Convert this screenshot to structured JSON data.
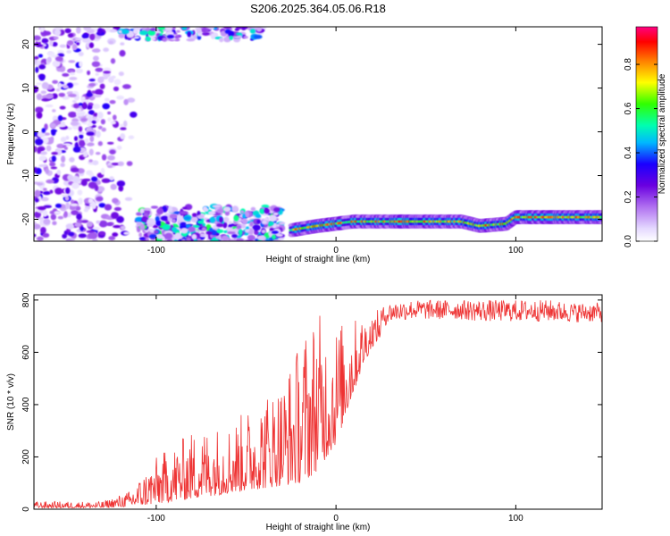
{
  "figure": {
    "title": "S206.2025.364.05.06.R18"
  },
  "colors": {
    "snr_line": "#ee3333",
    "colormap": [
      "#ffffff",
      "#e4d8ff",
      "#b070f0",
      "#6a00e0",
      "#1a00ff",
      "#00b8ff",
      "#00ffb0",
      "#30ff00",
      "#ffff00",
      "#ff8000",
      "#ff0000",
      "#ff0080"
    ]
  },
  "chart_data": [
    {
      "type": "heatmap",
      "title": "S206.2025.364.05.06.R18",
      "xlabel": "Height of straight line (km)",
      "ylabel": "Frequency (Hz)",
      "xlim": [
        -168,
        148
      ],
      "ylim": [
        -25,
        24
      ],
      "xticks": [
        -100,
        0,
        100
      ],
      "xtick_labels": [
        "-100",
        "0",
        "100"
      ],
      "yticks": [
        -20,
        -10,
        0,
        10,
        20
      ],
      "ytick_labels": [
        "-20",
        "-10",
        "0",
        "10",
        "20"
      ],
      "colorbar": {
        "label": "Normalized spectral amplitude",
        "range": [
          0.0,
          0.97
        ],
        "ticks": [
          0.0,
          0.2,
          0.4,
          0.6,
          0.8
        ],
        "tick_labels": [
          "0.0",
          "0.2",
          "0.4",
          "0.6",
          "0.8"
        ],
        "colormap": "rainbow"
      },
      "features": [
        {
          "description_kind": "ridge",
          "x": [
            -25,
            -10,
            0,
            10,
            30,
            50,
            70,
            80,
            95,
            100,
            120,
            148
          ],
          "y": [
            -22.5,
            -21.5,
            -21,
            -20.5,
            -20.5,
            -20.5,
            -20.5,
            -21.5,
            -21,
            -19.5,
            -19.5,
            -19.5
          ],
          "amplitude": 0.9
        },
        {
          "description_kind": "noise_cloud",
          "x_range": [
            -168,
            -110
          ],
          "y_range": [
            -25,
            24
          ],
          "amplitude": 0.35
        },
        {
          "description_kind": "noise_band_low",
          "x_range": [
            -110,
            -30
          ],
          "y_range": [
            -25,
            -17
          ],
          "amplitude": 0.45
        },
        {
          "description_kind": "noise_band_high",
          "x_range": [
            -120,
            -40
          ],
          "y_range": [
            21,
            24
          ],
          "amplitude": 0.4
        }
      ]
    },
    {
      "type": "line",
      "xlabel": "Height of straight line (km)",
      "ylabel": "SNR (10 * v/v)",
      "xlim": [
        -168,
        148
      ],
      "ylim": [
        0,
        820
      ],
      "xticks": [
        -100,
        0,
        100
      ],
      "xtick_labels": [
        "-100",
        "0",
        "100"
      ],
      "yticks": [
        0,
        200,
        400,
        600,
        800
      ],
      "ytick_labels": [
        "0",
        "200",
        "400",
        "600",
        "800"
      ],
      "series": [
        {
          "x": [
            -168,
            -150,
            -130,
            -115,
            -100,
            -90,
            -80,
            -70,
            -60,
            -50,
            -40,
            -30,
            -20,
            -15,
            -10,
            -5,
            0,
            5,
            10,
            15,
            20,
            25,
            30,
            40,
            50,
            60,
            70,
            80,
            90,
            100,
            110,
            120,
            130,
            140,
            148
          ],
          "y_min": [
            5,
            5,
            5,
            10,
            20,
            30,
            40,
            50,
            60,
            70,
            80,
            90,
            100,
            120,
            150,
            200,
            250,
            350,
            450,
            550,
            620,
            660,
            690,
            700,
            700,
            700,
            700,
            690,
            690,
            690,
            690,
            690,
            690,
            690,
            690
          ],
          "y_max": [
            30,
            30,
            30,
            70,
            200,
            250,
            300,
            320,
            330,
            380,
            450,
            500,
            650,
            740,
            760,
            720,
            720,
            720,
            730,
            740,
            750,
            770,
            790,
            800,
            800,
            800,
            800,
            800,
            800,
            800,
            800,
            800,
            790,
            790,
            790
          ]
        }
      ]
    }
  ]
}
